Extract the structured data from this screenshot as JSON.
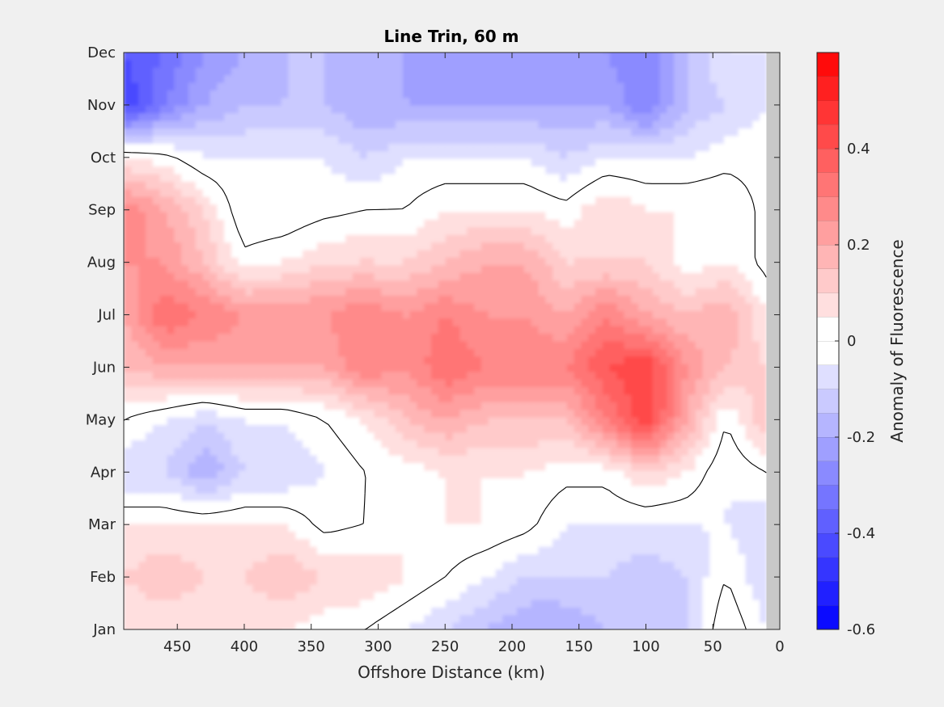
{
  "chart_data": {
    "type": "heatmap",
    "title": "Line Trin, 60 m",
    "xlabel": "Offshore Distance (km)",
    "ylabel": "",
    "colorbar_label": "Anomaly of Fluorescence",
    "x_ticks": [
      0,
      50,
      100,
      150,
      200,
      250,
      300,
      350,
      400,
      450
    ],
    "xlim": [
      490,
      0
    ],
    "x_reversed": true,
    "y_ticks": [
      "Jan",
      "Feb",
      "Mar",
      "Apr",
      "May",
      "Jun",
      "Jul",
      "Aug",
      "Sep",
      "Oct",
      "Nov",
      "Dec"
    ],
    "color_ticks": [
      -0.6,
      -0.4,
      -0.2,
      0,
      0.2,
      0.4
    ],
    "color_limits": [
      -0.6,
      0.6
    ],
    "colors": {
      "positive_max": "#ff0000",
      "negative_max": "#0000ff",
      "zero": "#ffffff",
      "no_data": "#c8c8c8",
      "contour": "#000000"
    },
    "levels": 24,
    "contour_level": 0,
    "no_data_x_range": [
      0,
      10
    ],
    "x": [
      10,
      40,
      70,
      100,
      130,
      160,
      190,
      220,
      250,
      280,
      310,
      340,
      370,
      400,
      430,
      460,
      490
    ],
    "y": [
      "Jan",
      "Feb",
      "Mar",
      "Apr",
      "May",
      "Jun",
      "Jul",
      "Aug",
      "Sep",
      "Oct",
      "Nov",
      "Dec"
    ],
    "z": [
      [
        -0.05,
        0.05,
        -0.1,
        -0.15,
        -0.15,
        -0.2,
        -0.2,
        -0.15,
        -0.1,
        -0.05,
        0.0,
        0.02,
        0.05,
        0.05,
        0.05,
        0.05,
        0.05
      ],
      [
        -0.1,
        0.0,
        -0.1,
        -0.15,
        -0.1,
        -0.1,
        -0.1,
        -0.05,
        0.0,
        0.05,
        0.1,
        0.1,
        0.15,
        0.1,
        0.1,
        0.15,
        0.1
      ],
      [
        -0.1,
        -0.05,
        -0.05,
        -0.05,
        -0.05,
        -0.05,
        0.02,
        0.05,
        0.05,
        0.05,
        0.0,
        -0.02,
        0.05,
        0.05,
        0.05,
        0.05,
        0.05
      ],
      [
        0.0,
        -0.05,
        0.05,
        0.1,
        0.02,
        0.02,
        0.05,
        0.05,
        0.05,
        0.02,
        0.0,
        -0.05,
        -0.1,
        -0.1,
        -0.2,
        -0.1,
        -0.1
      ],
      [
        0.15,
        0.0,
        0.2,
        0.45,
        0.3,
        0.15,
        0.15,
        0.15,
        0.2,
        0.15,
        0.05,
        0.0,
        -0.05,
        -0.05,
        -0.1,
        -0.05,
        0.0
      ],
      [
        0.1,
        0.15,
        0.25,
        0.45,
        0.4,
        0.3,
        0.3,
        0.3,
        0.35,
        0.25,
        0.3,
        0.2,
        0.2,
        0.2,
        0.2,
        0.2,
        0.15
      ],
      [
        0.05,
        0.2,
        0.15,
        0.2,
        0.3,
        0.2,
        0.25,
        0.25,
        0.3,
        0.25,
        0.3,
        0.25,
        0.25,
        0.25,
        0.3,
        0.35,
        0.2
      ],
      [
        -0.02,
        0.05,
        0.02,
        0.1,
        0.1,
        0.1,
        0.2,
        0.2,
        0.15,
        0.1,
        0.1,
        0.1,
        0.05,
        0.02,
        0.15,
        0.25,
        0.25
      ],
      [
        -0.02,
        0.05,
        0.05,
        0.05,
        0.1,
        0.02,
        0.05,
        0.05,
        0.05,
        0.0,
        0.0,
        -0.02,
        -0.05,
        -0.05,
        0.1,
        0.2,
        0.3
      ],
      [
        -0.02,
        -0.02,
        -0.05,
        -0.05,
        -0.05,
        -0.1,
        -0.05,
        -0.05,
        -0.05,
        -0.05,
        -0.1,
        -0.05,
        -0.05,
        -0.05,
        -0.05,
        0.02,
        0.05
      ],
      [
        -0.05,
        -0.1,
        -0.15,
        -0.3,
        -0.2,
        -0.2,
        -0.2,
        -0.2,
        -0.2,
        -0.2,
        -0.2,
        -0.15,
        -0.15,
        -0.15,
        -0.2,
        -0.3,
        -0.45
      ],
      [
        -0.05,
        -0.05,
        -0.15,
        -0.3,
        -0.25,
        -0.25,
        -0.25,
        -0.25,
        -0.25,
        -0.2,
        -0.2,
        -0.15,
        -0.15,
        -0.2,
        -0.25,
        -0.35,
        -0.4
      ]
    ]
  }
}
